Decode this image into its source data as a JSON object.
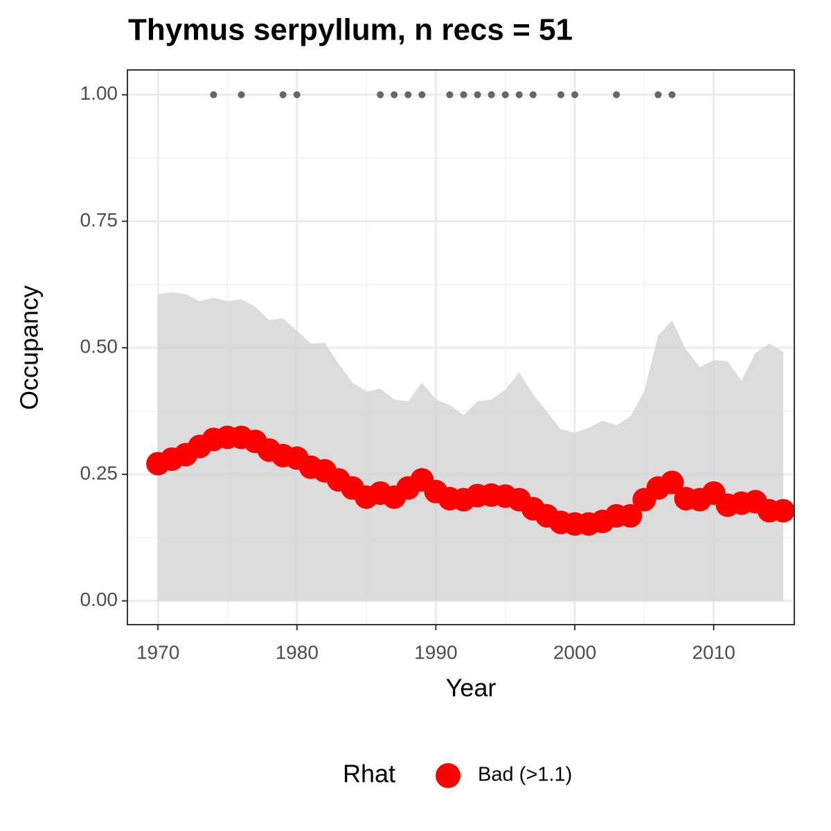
{
  "chart_data": {
    "type": "line",
    "title": "Thymus serpyllum, n recs = 51",
    "x_label": "Year",
    "y_label": "Occupancy",
    "x": [
      1970,
      1971,
      1972,
      1973,
      1974,
      1975,
      1976,
      1977,
      1978,
      1979,
      1980,
      1981,
      1982,
      1983,
      1984,
      1985,
      1986,
      1987,
      1988,
      1989,
      1990,
      1991,
      1992,
      1993,
      1994,
      1995,
      1996,
      1997,
      1998,
      1999,
      2000,
      2001,
      2002,
      2003,
      2004,
      2005,
      2006,
      2007,
      2008,
      2009,
      2010,
      2011,
      2012,
      2013,
      2014,
      2015
    ],
    "series": [
      {
        "name": "Bad (>1.1)",
        "color": "#ff0000",
        "values": [
          0.271,
          0.28,
          0.289,
          0.305,
          0.319,
          0.323,
          0.323,
          0.315,
          0.298,
          0.287,
          0.282,
          0.264,
          0.257,
          0.239,
          0.223,
          0.205,
          0.213,
          0.205,
          0.223,
          0.239,
          0.216,
          0.202,
          0.2,
          0.208,
          0.209,
          0.207,
          0.2,
          0.182,
          0.168,
          0.155,
          0.152,
          0.152,
          0.157,
          0.168,
          0.168,
          0.2,
          0.223,
          0.234,
          0.202,
          0.2,
          0.213,
          0.189,
          0.193,
          0.196,
          0.178,
          0.178
        ]
      }
    ],
    "ribbon": {
      "color": "#d6d6d6",
      "upper": [
        0.606,
        0.61,
        0.606,
        0.592,
        0.599,
        0.592,
        0.596,
        0.581,
        0.555,
        0.558,
        0.534,
        0.508,
        0.51,
        0.469,
        0.431,
        0.414,
        0.419,
        0.398,
        0.394,
        0.431,
        0.398,
        0.387,
        0.367,
        0.394,
        0.398,
        0.417,
        0.451,
        0.408,
        0.373,
        0.339,
        0.332,
        0.342,
        0.356,
        0.347,
        0.364,
        0.414,
        0.524,
        0.554,
        0.497,
        0.462,
        0.476,
        0.473,
        0.435,
        0.49,
        0.508,
        0.492
      ],
      "lower": [
        0,
        0,
        0,
        0,
        0,
        0,
        0,
        0,
        0,
        0,
        0,
        0,
        0,
        0,
        0,
        0,
        0,
        0,
        0,
        0,
        0,
        0,
        0,
        0,
        0,
        0,
        0,
        0,
        0,
        0,
        0,
        0,
        0,
        0,
        0,
        0,
        0,
        0,
        0,
        0,
        0,
        0,
        0,
        0,
        0,
        0
      ]
    },
    "records": {
      "color": "#666666",
      "y": 1,
      "x": [
        1974,
        1976,
        1979,
        1980,
        1986,
        1987,
        1988,
        1989,
        1991,
        1992,
        1993,
        1994,
        1995,
        1996,
        1997,
        1999,
        2000,
        2003,
        2006,
        2007
      ]
    },
    "legend_title": "Rhat",
    "xlim": [
      1967.8,
      2015.8
    ],
    "ylim": [
      -0.047,
      1.049
    ],
    "xticks": [
      1970,
      1980,
      1990,
      2000,
      2010
    ],
    "yticks": [
      {
        "value": 0,
        "label": "0.00"
      },
      {
        "value": 0.25,
        "label": "0.25"
      },
      {
        "value": 0.5,
        "label": "0.50"
      },
      {
        "value": 0.75,
        "label": "0.75"
      },
      {
        "value": 1,
        "label": "1.00"
      }
    ],
    "grid": true
  }
}
